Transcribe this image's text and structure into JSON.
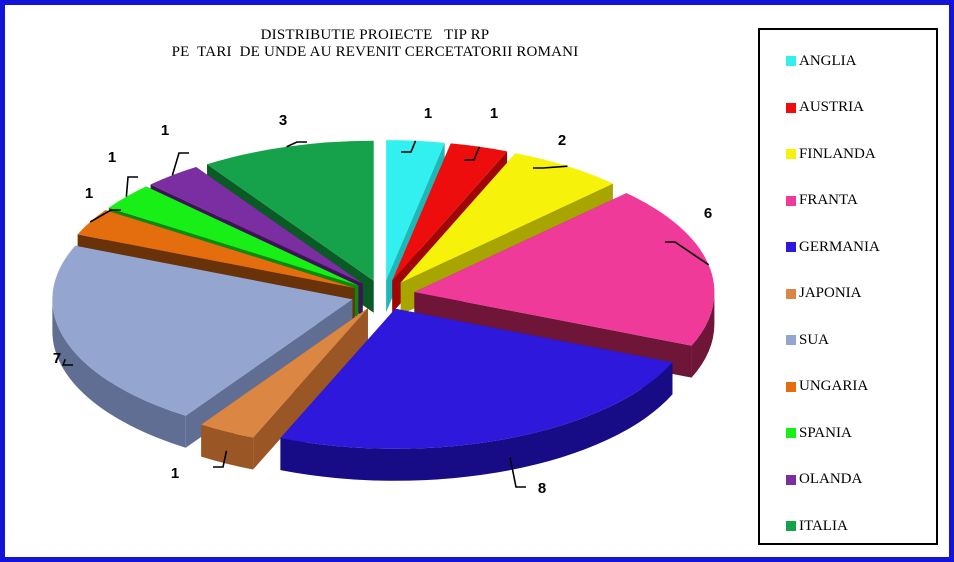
{
  "chart_data": {
    "type": "pie",
    "title_lines": [
      "DISTRIBUTIE PROIECTE   TIP RP",
      "PE  TARI  DE UNDE AU REVENIT CERCETATORII ROMANI"
    ],
    "slices": [
      {
        "label": "ANGLIA",
        "value": 1,
        "color": "#33f0f0",
        "side": "#1fb8b8"
      },
      {
        "label": "AUSTRIA",
        "value": 1,
        "color": "#ee0d0d",
        "side": "#a00606"
      },
      {
        "label": "FINLANDA",
        "value": 2,
        "color": "#f6f20a",
        "side": "#a8a400"
      },
      {
        "label": "FRANTA",
        "value": 6,
        "color": "#ef3a9a",
        "side": "#6e1538"
      },
      {
        "label": "GERMANIA",
        "value": 8,
        "color": "#2e18dc",
        "side": "#170c86"
      },
      {
        "label": "JAPONIA",
        "value": 1,
        "color": "#dc8644",
        "side": "#9a5624"
      },
      {
        "label": "SUA",
        "value": 7,
        "color": "#94a6cf",
        "side": "#5f6e92"
      },
      {
        "label": "UNGARIA",
        "value": 1,
        "color": "#e46e0e",
        "side": "#6a3208"
      },
      {
        "label": "SPANIA",
        "value": 1,
        "color": "#17ef17",
        "side": "#0a8a0a"
      },
      {
        "label": "OLANDA",
        "value": 1,
        "color": "#7a2ea2",
        "side": "#3e1456"
      },
      {
        "label": "ITALIA",
        "value": 3,
        "color": "#16a24a",
        "side": "#0a5a26"
      }
    ],
    "legend_position": "right"
  }
}
